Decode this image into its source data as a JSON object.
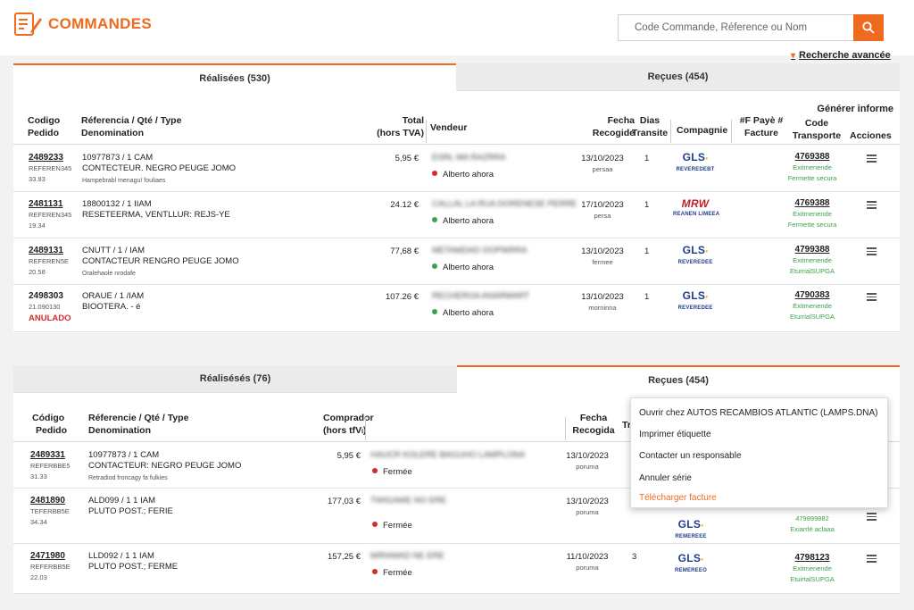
{
  "header": {
    "title": "COMMANDES",
    "search_placeholder": "Code Commande, Réference ou Nom",
    "advanced_search": "Recherche avancée"
  },
  "panel1": {
    "tab_active": "Réalisées (530)",
    "tab_inactive": "Reçues (454)",
    "generate_report": "Générer informe",
    "headers": {
      "code_1": "Codigo",
      "code_2": "Pedido",
      "ref_1": "Réferencia / Qté / Type",
      "ref_2": "Denomination",
      "total_1": "Total",
      "total_2": "(hors TVA)",
      "vendor": "Vendeur",
      "date_1": "Fecha",
      "date_2": "Recogide",
      "days_1": "Dias",
      "days_2": "Transite",
      "company": "Compagnie",
      "invoice_1": "#F Payè #",
      "invoice_2": "Facture",
      "transport_1": "Code",
      "transport_2": "Transporte",
      "actions": "Acciones"
    },
    "rows": [
      {
        "order": "2489233",
        "ref_code": "REFEREN345",
        "ref_num": "33.93",
        "line1": "10977873 / 1 CAM",
        "line2": "CONTECTEUR. NEGRO PEUGE JOMO",
        "line3": "Hampebrabl menagu! fouliaes",
        "total": "5,95 €",
        "vendor": "ESRL MA RAZRRA",
        "status": "Alberto ahora",
        "status_color": "#d42b2b",
        "date": "13/10/2023",
        "date_sub": "persaa",
        "days": "1",
        "carrier": "GLS",
        "carrier_sub": "REVEREDEBT",
        "tracking": "4769388",
        "track1": "Exitmenende",
        "track2": "Fermette secura"
      },
      {
        "order": "2481131",
        "ref_code": "REFEREN345",
        "ref_num": "19.34",
        "line1": "18800132 / 1 IIAM",
        "line2": "RESETEERMA, VENTLLUR: REJS-YE",
        "line3": "",
        "total": "24.12 €",
        "vendor": "CALLAL LA RUA DORENESE PERRE",
        "status": "Alberto ahora",
        "status_color": "#3aa34a",
        "date": "17/10/2023",
        "date_sub": "persa",
        "days": "1",
        "carrier": "MRW",
        "carrier_sub": "REANEN LIMEEA",
        "tracking": "4769388",
        "track1": "Exitmenende",
        "track2": "Fermette secura"
      },
      {
        "order": "2489131",
        "ref_code": "REFEREN5E",
        "ref_num": "20.58",
        "line1": "CNUTT / 1 / IAM",
        "line2": "CONTACTEUR RENGRO PEUGE JOMO",
        "line3": "Oralehaole nrodafe",
        "total": "77,68 €",
        "vendor": "METAMDAD OOPWRRA",
        "status": "Alberto ahora",
        "status_color": "#3aa34a",
        "date": "13/10/2023",
        "date_sub": "fermee",
        "days": "1",
        "carrier": "GLS",
        "carrier_sub": "REVEREDEE",
        "tracking": "4799388",
        "track1": "Exitmenende",
        "track2": "EturrialSUPGA"
      },
      {
        "order": "2498303",
        "ref_code": "21.090130",
        "ref_num": "",
        "line1": "ORAUE / 1 /IAM",
        "line2": "BIOOTERA.  - é",
        "line3": "",
        "total": "107.26 €",
        "vendor": "RECHEROA ANARWART",
        "status": "Alberto ahora",
        "status_color": "#3aa34a",
        "date": "13/10/2023",
        "date_sub": "morninna",
        "days": "1",
        "carrier": "GLS",
        "carrier_sub": "REVEREDEE",
        "tracking": "4790383",
        "track1": "Exitmenende",
        "track2": "EturrialSUPGA",
        "annule": "ANULADO"
      }
    ]
  },
  "panel2": {
    "tab_inactive": "Réalisésés (76)",
    "tab_active": "Reçues (454)",
    "headers": {
      "code_1": "Código",
      "code_2": "Pedido",
      "ref_1": "Réferencie / Qté / Type",
      "ref_2": "Denomination",
      "buyer_1": "Comprador",
      "buyer_2": "(hors tfVₗ)",
      "date_1": "Fecha",
      "date_2": "Recogida",
      "t": "Tr"
    },
    "rows": [
      {
        "order": "2489331",
        "ref_code": "REFERBBE5",
        "ref_num": "31.33",
        "line1": "10977873 / 1 CAM",
        "line2": "CONTACTEUR: NEGRO PEUGE JOMO",
        "line3": "Retradiod froncagy fa fulkies",
        "total": "5,95 €",
        "buyer": "HAUCR KOLERE BAGUHO LAMPLONA",
        "status": "Fermée",
        "date": "13/10/2023",
        "date_sub": "poruma",
        "days": "",
        "carrier": "",
        "carrier_sub": "",
        "tracking": "",
        "track1": "",
        "track2": ""
      },
      {
        "order": "2481890",
        "ref_code": "TEFERBB5E",
        "ref_num": "34.34",
        "line1": "ALD099 / 1 1 IAM",
        "line2": "PLUTO POST.; FERIE",
        "line3": "",
        "total": "177,03 €",
        "buyer": "TWIGAWE NO ERE",
        "status": "Fermée",
        "date": "13/10/2023",
        "date_sub": "poruma",
        "days": "",
        "carrier": "GLS",
        "carrier_sub": "REMEREEE",
        "tracking": "479899882",
        "track1": "Exiarrlé aclaaa",
        "track2": ""
      },
      {
        "order": "2471980",
        "ref_code": "REFERBB5E",
        "ref_num": "22.03",
        "line1": "LLD092 / 1 1 IAM",
        "line2": "PLUTO POST.; FERME",
        "line3": "",
        "total": "157,25 €",
        "buyer": "MIRAMAD NE ERE",
        "status": "Fermée",
        "date": "11/10/2023",
        "date_sub": "poruma",
        "days": "3",
        "carrier": "GLS",
        "carrier_sub": "REMEREEO",
        "tracking": "4798123",
        "track1": "Exitmenende",
        "track2": "EtuirtalSUPGA"
      }
    ]
  },
  "dropdown": {
    "items": [
      {
        "label": "Ouvrir chez AUTOS RECAMBIOS ATLANTIC (LAMPS.DNA)",
        "highlight": false
      },
      {
        "label": "Imprimer étiquette",
        "highlight": false
      },
      {
        "label": "Contacter un responsable",
        "highlight": false
      },
      {
        "label": "Annuler série",
        "highlight": false
      },
      {
        "label": "Télécharger facture",
        "highlight": true
      }
    ]
  },
  "colors": {
    "accent": "#ee6a1f",
    "status_red": "#d42b2b",
    "status_green": "#3aa34a",
    "carrier_blue": "#1e3c8c"
  }
}
